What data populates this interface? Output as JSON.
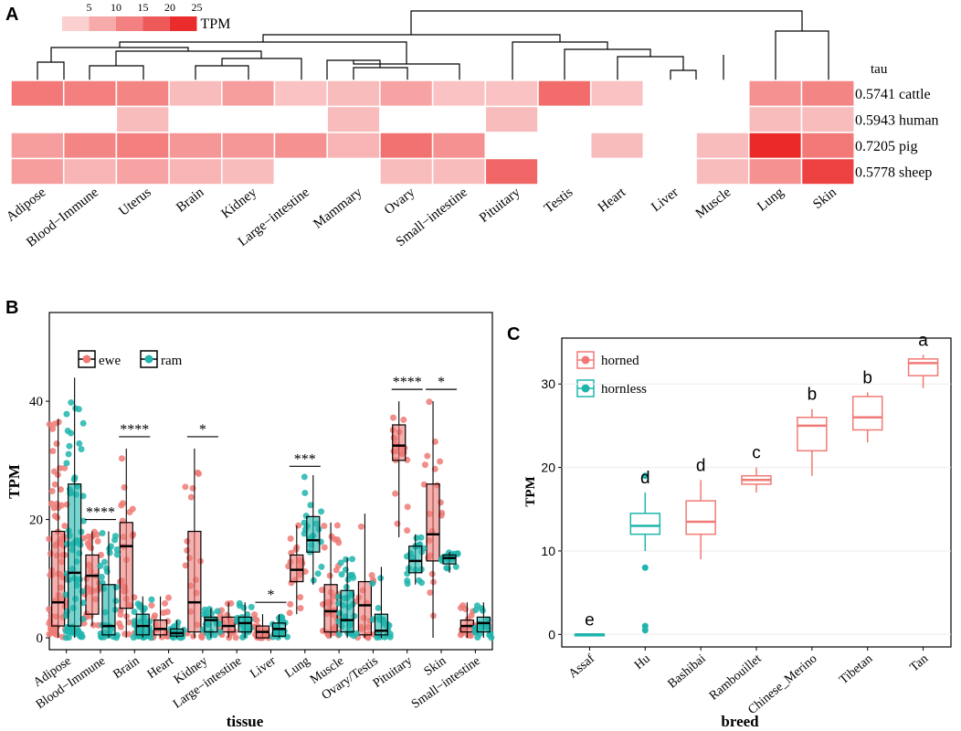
{
  "panels": {
    "a": "A",
    "b": "B",
    "c": "C"
  },
  "chart_data": [
    {
      "type": "heatmap",
      "panel": "A",
      "columns": [
        "Adipose",
        "Blood−Immune",
        "Uterus",
        "Brain",
        "Kidney",
        "Large−intestine",
        "Mammary",
        "Ovary",
        "Small−intestine",
        "Pituitary",
        "Testis",
        "Heart",
        "Liver",
        "Muscle",
        "Lung",
        "Skin"
      ],
      "rows": [
        "cattle",
        "human",
        "pig",
        "sheep"
      ],
      "tau_label": "tau",
      "tau": [
        "0.5741",
        "0.5943",
        "0.7205",
        "0.5778"
      ],
      "values": [
        [
          16,
          15,
          14,
          5,
          10,
          4,
          5,
          9,
          4,
          4,
          18,
          4,
          0,
          0,
          12,
          14
        ],
        [
          0,
          0,
          5,
          0,
          0,
          0,
          5,
          0,
          0,
          5,
          0,
          0,
          0,
          0,
          5,
          5
        ],
        [
          10,
          14,
          15,
          11,
          11,
          12,
          6,
          17,
          12,
          0,
          0,
          5,
          0,
          5,
          29,
          16
        ],
        [
          10,
          6,
          9,
          6,
          5,
          0,
          0,
          5,
          5,
          19,
          0,
          0,
          0,
          5,
          12,
          25
        ]
      ],
      "legend": {
        "title": "TPM",
        "ticks": [
          "5",
          "10",
          "15",
          "20",
          "25"
        ],
        "colors": [
          "#fbd0d0",
          "#f7aaaa",
          "#f38181",
          "#ee5a5a",
          "#eb2c2c"
        ]
      }
    },
    {
      "type": "box",
      "panel": "B",
      "xlabel": "tissue",
      "ylabel": "TPM",
      "ylim": [
        -2,
        55
      ],
      "yticks": [
        0,
        20,
        40
      ],
      "categories": [
        "Adipose",
        "Blood−Immune",
        "Brain",
        "Heart",
        "Kidney",
        "Large−intestine",
        "Liver",
        "Lung",
        "Muscle",
        "Ovary/Testis",
        "Pituitary",
        "Skin",
        "Small−intestine"
      ],
      "legend": [
        "ewe",
        "ram"
      ],
      "colors": {
        "ewe": "#f07a76",
        "ram": "#1fb5ad"
      },
      "series": [
        {
          "name": "ewe",
          "boxes": [
            [
              0,
              2,
              6,
              18,
              37
            ],
            [
              2,
              4,
              10.5,
              14,
              18
            ],
            [
              0,
              5,
              15.5,
              19.5,
              32
            ],
            [
              0,
              0.5,
              1.5,
              3,
              7
            ],
            [
              0,
              1,
              6,
              18,
              32
            ],
            [
              0,
              1,
              2,
              3.5,
              6
            ],
            [
              0,
              0,
              1,
              2,
              4
            ],
            [
              4,
              9.5,
              11.5,
              14,
              19
            ],
            [
              0,
              1,
              4.5,
              9,
              19.5
            ],
            [
              0,
              0.5,
              5.5,
              9.5,
              21
            ],
            [
              17,
              30,
              32.5,
              36,
              40
            ],
            [
              0,
              13,
              17.5,
              26,
              40
            ],
            [
              0,
              1,
              2,
              3,
              6
            ]
          ]
        },
        {
          "name": "ram",
          "boxes": [
            [
              0,
              2,
              11,
              26,
              44
            ],
            [
              0,
              0.5,
              2,
              9,
              18
            ],
            [
              0,
              0.5,
              2,
              4,
              7
            ],
            [
              0,
              0.3,
              0.8,
              1.5,
              3
            ],
            [
              0,
              1,
              3,
              3.5,
              5
            ],
            [
              0,
              1,
              2.5,
              3.5,
              6
            ],
            [
              0,
              0.3,
              1.5,
              2.5,
              4
            ],
            [
              9,
              14.5,
              16.5,
              20.5,
              27.5
            ],
            [
              0,
              1,
              3,
              8,
              13.5
            ],
            [
              0,
              0.5,
              1.2,
              4,
              12
            ],
            [
              9,
              11,
              13,
              15.5,
              17.5
            ],
            [
              11,
              12.5,
              13.5,
              14,
              14.5
            ],
            [
              0,
              1,
              2.5,
              3.5,
              6
            ]
          ]
        }
      ],
      "significance": [
        {
          "category": "Blood−Immune",
          "label": "****",
          "y": 20
        },
        {
          "category": "Brain",
          "label": "****",
          "y": 34
        },
        {
          "category": "Kidney",
          "label": "*",
          "y": 34
        },
        {
          "category": "Liver",
          "label": "*",
          "y": 6
        },
        {
          "category": "Lung",
          "label": "***",
          "y": 29
        },
        {
          "category": "Pituitary",
          "label": "****",
          "y": 42
        },
        {
          "category": "Skin",
          "label": "*",
          "y": 42
        }
      ]
    },
    {
      "type": "box",
      "panel": "C",
      "xlabel": "breed",
      "ylabel": "TPM",
      "ylim": [
        -1.5,
        35.5
      ],
      "yticks": [
        0,
        10,
        20,
        30
      ],
      "categories": [
        "Assaf",
        "Hu",
        "Bashibai",
        "Rambouillet",
        "Chinese_Merino",
        "Tibetan",
        "Tan"
      ],
      "legend": [
        "horned",
        "hornless"
      ],
      "colors": {
        "horned": "#f07a76",
        "hornless": "#1fb5ad"
      },
      "groups": [
        "hornless",
        "hornless",
        "horned",
        "horned",
        "horned",
        "horned",
        "horned"
      ],
      "boxes": [
        [
          0,
          0,
          0,
          0,
          0
        ],
        [
          10,
          12,
          13,
          14.5,
          17
        ],
        [
          9,
          12,
          13.5,
          16,
          18.5
        ],
        [
          17,
          18,
          18.5,
          19,
          20
        ],
        [
          19,
          22,
          25,
          26,
          27
        ],
        [
          23,
          24.5,
          26,
          28.5,
          29
        ],
        [
          29.5,
          31,
          32.5,
          33,
          33.5
        ]
      ],
      "outliers": [
        [],
        [
          19,
          8,
          1,
          0.5
        ],
        [],
        [],
        [],
        [],
        []
      ],
      "letters": [
        "e",
        "d",
        "d",
        "c",
        "b",
        "b",
        "a"
      ]
    }
  ]
}
